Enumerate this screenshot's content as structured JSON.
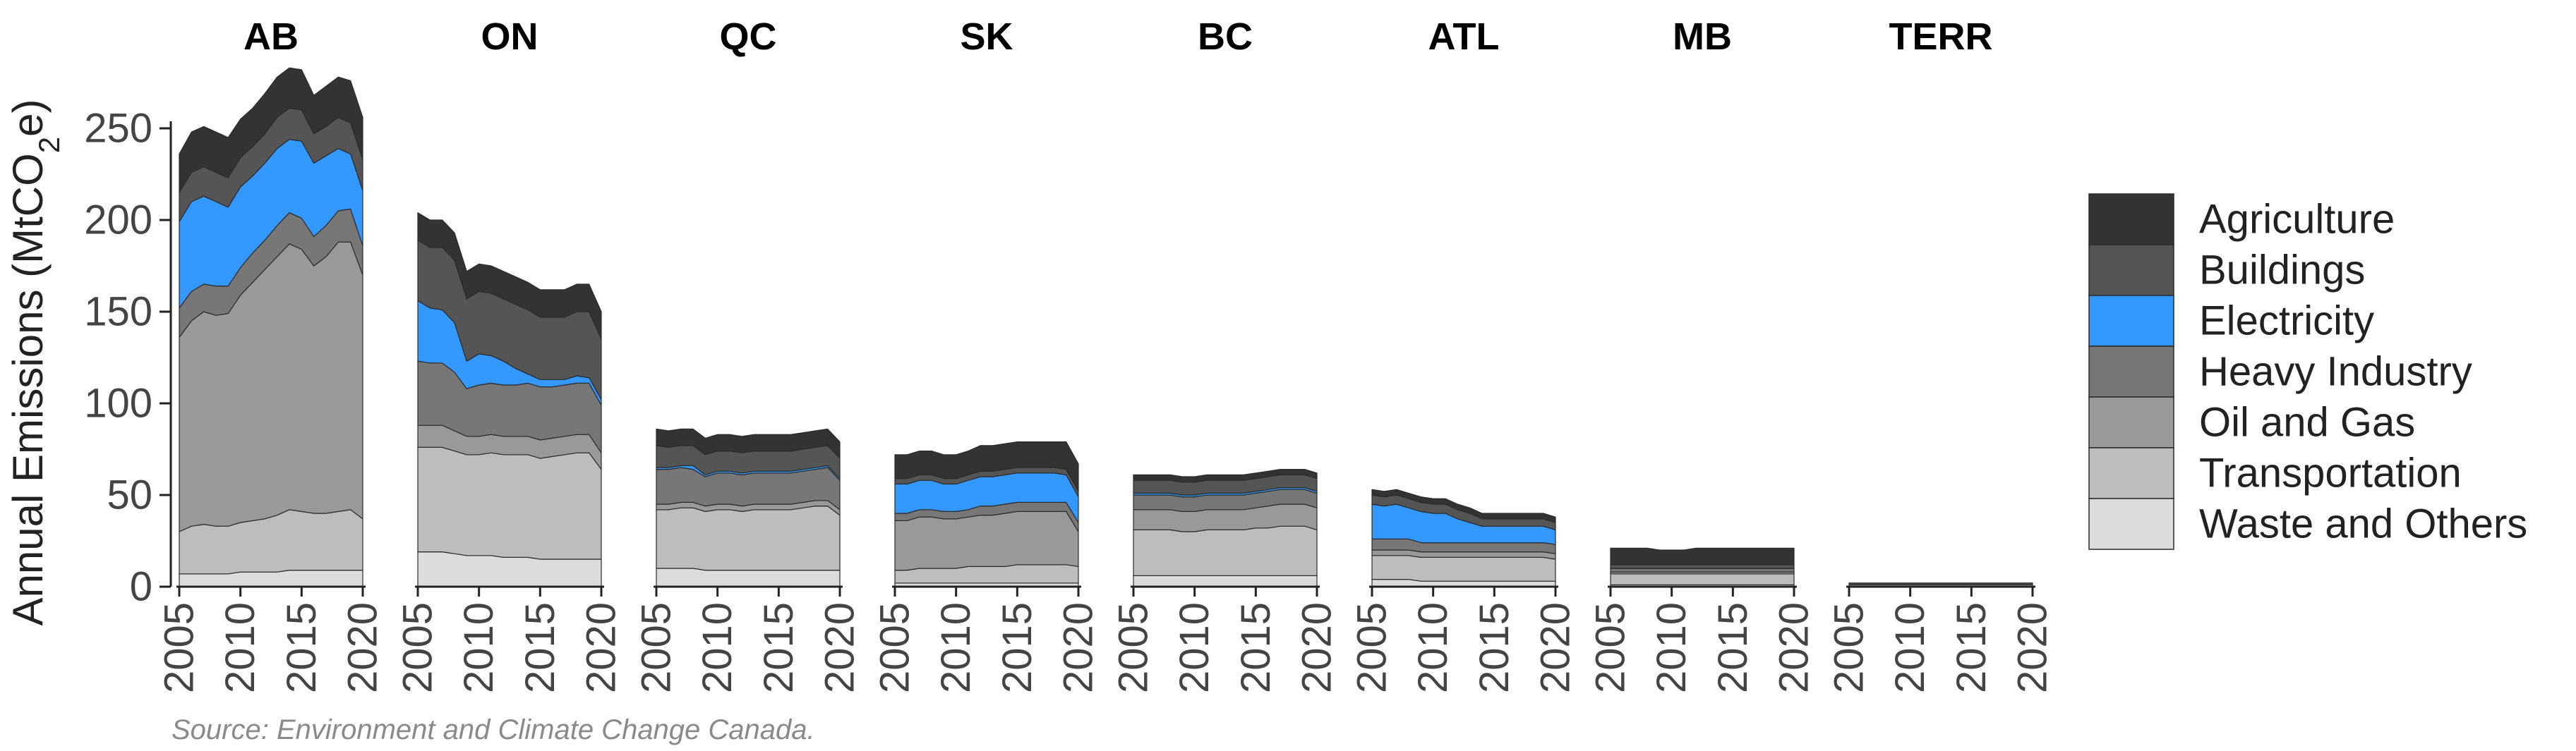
{
  "chart_data": {
    "type": "area",
    "stacked": true,
    "ylabel_main": "Annual Emissions  (MtCO",
    "ylabel_sub": "2",
    "ylabel_end": "e)",
    "ylim": [
      0,
      280
    ],
    "yticks": [
      0,
      50,
      100,
      150,
      200,
      250
    ],
    "xlim": [
      2005,
      2020
    ],
    "xticks": [
      2005,
      2010,
      2015,
      2020
    ],
    "years": [
      2005,
      2006,
      2007,
      2008,
      2009,
      2010,
      2011,
      2012,
      2013,
      2014,
      2015,
      2016,
      2017,
      2018,
      2019,
      2020
    ],
    "legend": {
      "placement": "right"
    },
    "series": [
      {
        "key": "waste",
        "name": "Waste and Others",
        "color": "#dcdcdc"
      },
      {
        "key": "transport",
        "name": "Transportation",
        "color": "#bdbdbd"
      },
      {
        "key": "oilgas",
        "name": "Oil and Gas",
        "color": "#999999"
      },
      {
        "key": "heavy",
        "name": "Heavy Industry",
        "color": "#777777"
      },
      {
        "key": "electricity",
        "name": "Electricity",
        "color": "#3399ff"
      },
      {
        "key": "buildings",
        "name": "Buildings",
        "color": "#555555"
      },
      {
        "key": "agriculture",
        "name": "Agriculture",
        "color": "#333333"
      }
    ],
    "panels": [
      {
        "name": "AB",
        "values": {
          "waste": [
            7,
            7,
            7,
            7,
            7,
            8,
            8,
            8,
            8,
            9,
            9,
            9,
            9,
            9,
            9,
            9
          ],
          "transport": [
            23,
            26,
            27,
            26,
            26,
            27,
            28,
            29,
            31,
            33,
            32,
            31,
            31,
            32,
            33,
            28
          ],
          "oilgas": [
            106,
            112,
            116,
            115,
            116,
            124,
            130,
            136,
            141,
            145,
            143,
            135,
            140,
            147,
            146,
            133
          ],
          "heavy": [
            16,
            16,
            15,
            16,
            15,
            15,
            16,
            16,
            17,
            17,
            17,
            16,
            17,
            17,
            18,
            16
          ],
          "electricity": [
            47,
            49,
            48,
            46,
            43,
            44,
            42,
            42,
            42,
            40,
            42,
            40,
            38,
            34,
            30,
            30
          ],
          "buildings": [
            16,
            16,
            16,
            16,
            16,
            16,
            16,
            16,
            17,
            17,
            17,
            16,
            16,
            17,
            17,
            17
          ],
          "agriculture": [
            21,
            22,
            22,
            22,
            22,
            21,
            21,
            22,
            22,
            22,
            22,
            21,
            22,
            22,
            23,
            23
          ]
        }
      },
      {
        "name": "ON",
        "values": {
          "waste": [
            19,
            19,
            19,
            18,
            17,
            17,
            17,
            16,
            16,
            16,
            15,
            15,
            15,
            15,
            15,
            15
          ],
          "transport": [
            57,
            57,
            57,
            56,
            55,
            55,
            56,
            56,
            56,
            56,
            55,
            56,
            57,
            58,
            58,
            49
          ],
          "oilgas": [
            12,
            12,
            12,
            11,
            10,
            10,
            10,
            10,
            10,
            10,
            10,
            10,
            10,
            10,
            10,
            9
          ],
          "heavy": [
            35,
            34,
            34,
            32,
            26,
            28,
            28,
            28,
            28,
            29,
            29,
            28,
            28,
            28,
            28,
            26
          ],
          "electricity": [
            33,
            30,
            29,
            27,
            15,
            17,
            15,
            13,
            9,
            5,
            4,
            4,
            3,
            4,
            3,
            3
          ],
          "buildings": [
            33,
            33,
            34,
            34,
            34,
            34,
            34,
            34,
            35,
            35,
            34,
            34,
            34,
            35,
            36,
            33
          ],
          "agriculture": [
            15,
            15,
            15,
            15,
            15,
            15,
            15,
            15,
            15,
            15,
            15,
            15,
            15,
            15,
            15,
            15
          ]
        }
      },
      {
        "name": "QC",
        "values": {
          "waste": [
            10,
            10,
            10,
            10,
            9,
            9,
            9,
            9,
            9,
            9,
            9,
            9,
            9,
            9,
            9,
            9
          ],
          "transport": [
            32,
            32,
            33,
            33,
            32,
            33,
            33,
            32,
            33,
            33,
            33,
            33,
            34,
            35,
            35,
            30
          ],
          "oilgas": [
            3,
            3,
            3,
            3,
            3,
            3,
            3,
            3,
            3,
            3,
            3,
            3,
            3,
            3,
            3,
            3
          ],
          "heavy": [
            19,
            19,
            19,
            18,
            16,
            17,
            17,
            17,
            17,
            17,
            17,
            17,
            17,
            17,
            18,
            16
          ],
          "electricity": [
            1,
            1,
            1,
            2,
            1,
            1,
            1,
            1,
            1,
            1,
            1,
            1,
            1,
            1,
            1,
            1
          ],
          "buildings": [
            12,
            11,
            11,
            11,
            11,
            11,
            11,
            11,
            11,
            11,
            11,
            11,
            11,
            11,
            11,
            11
          ],
          "agriculture": [
            9,
            9,
            9,
            9,
            9,
            9,
            9,
            9,
            9,
            9,
            9,
            9,
            9,
            9,
            9,
            9
          ]
        }
      },
      {
        "name": "SK",
        "values": {
          "waste": [
            2,
            2,
            2,
            2,
            2,
            2,
            2,
            2,
            2,
            2,
            2,
            2,
            2,
            2,
            2,
            2
          ],
          "transport": [
            7,
            7,
            8,
            8,
            8,
            8,
            9,
            9,
            9,
            9,
            10,
            10,
            10,
            10,
            10,
            9
          ],
          "oilgas": [
            27,
            27,
            28,
            28,
            27,
            27,
            27,
            28,
            28,
            29,
            29,
            29,
            29,
            29,
            29,
            19
          ],
          "heavy": [
            4,
            4,
            4,
            4,
            4,
            4,
            4,
            5,
            5,
            5,
            5,
            5,
            5,
            5,
            5,
            5
          ],
          "electricity": [
            16,
            16,
            16,
            16,
            15,
            15,
            16,
            16,
            16,
            16,
            16,
            16,
            16,
            16,
            15,
            14
          ],
          "buildings": [
            3,
            3,
            3,
            3,
            3,
            3,
            3,
            3,
            3,
            3,
            3,
            3,
            3,
            3,
            3,
            3
          ],
          "agriculture": [
            13,
            13,
            13,
            13,
            13,
            13,
            13,
            14,
            14,
            14,
            14,
            14,
            14,
            14,
            15,
            15
          ]
        }
      },
      {
        "name": "BC",
        "values": {
          "waste": [
            6,
            6,
            6,
            6,
            6,
            6,
            6,
            6,
            6,
            6,
            6,
            6,
            6,
            6,
            6,
            6
          ],
          "transport": [
            25,
            25,
            25,
            25,
            24,
            24,
            25,
            25,
            25,
            25,
            26,
            26,
            27,
            27,
            27,
            25
          ],
          "oilgas": [
            11,
            11,
            11,
            11,
            11,
            11,
            11,
            11,
            11,
            11,
            11,
            12,
            12,
            12,
            12,
            12
          ],
          "heavy": [
            8,
            8,
            8,
            8,
            8,
            8,
            8,
            8,
            8,
            8,
            8,
            8,
            8,
            8,
            8,
            8
          ],
          "electricity": [
            1,
            1,
            1,
            1,
            1,
            1,
            1,
            1,
            1,
            1,
            1,
            1,
            1,
            1,
            1,
            1
          ],
          "buildings": [
            7,
            7,
            7,
            7,
            7,
            7,
            7,
            7,
            7,
            7,
            7,
            7,
            7,
            7,
            7,
            7
          ],
          "agriculture": [
            3,
            3,
            3,
            3,
            3,
            3,
            3,
            3,
            3,
            3,
            3,
            3,
            3,
            3,
            3,
            3
          ]
        }
      },
      {
        "name": "ATL",
        "values": {
          "waste": [
            4,
            4,
            4,
            4,
            3,
            3,
            3,
            3,
            3,
            3,
            3,
            3,
            3,
            3,
            3,
            3
          ],
          "transport": [
            13,
            13,
            13,
            13,
            13,
            13,
            13,
            13,
            13,
            13,
            13,
            13,
            13,
            13,
            13,
            12
          ],
          "oilgas": [
            3,
            3,
            3,
            3,
            3,
            3,
            3,
            3,
            3,
            3,
            3,
            3,
            3,
            3,
            3,
            3
          ],
          "heavy": [
            6,
            6,
            6,
            6,
            5,
            5,
            5,
            5,
            5,
            5,
            5,
            5,
            5,
            5,
            5,
            5
          ],
          "electricity": [
            19,
            18,
            19,
            17,
            17,
            16,
            16,
            13,
            11,
            9,
            9,
            9,
            9,
            9,
            9,
            8
          ],
          "buildings": [
            5,
            5,
            5,
            5,
            5,
            5,
            5,
            5,
            5,
            4,
            4,
            4,
            4,
            4,
            4,
            4
          ],
          "agriculture": [
            3,
            3,
            3,
            3,
            3,
            3,
            3,
            3,
            3,
            3,
            3,
            3,
            3,
            3,
            3,
            3
          ]
        }
      },
      {
        "name": "MB",
        "values": {
          "waste": [
            1,
            1,
            1,
            1,
            1,
            1,
            1,
            1,
            1,
            1,
            1,
            1,
            1,
            1,
            1,
            1
          ],
          "transport": [
            6,
            6,
            6,
            6,
            6,
            6,
            6,
            6,
            6,
            6,
            6,
            6,
            6,
            6,
            6,
            6
          ],
          "oilgas": [
            1,
            1,
            1,
            1,
            1,
            1,
            1,
            1,
            1,
            1,
            1,
            1,
            1,
            1,
            1,
            1
          ],
          "heavy": [
            2,
            2,
            2,
            2,
            2,
            2,
            2,
            2,
            2,
            2,
            2,
            2,
            2,
            2,
            2,
            2
          ],
          "electricity": [
            0,
            0,
            0,
            0,
            0,
            0,
            0,
            0,
            0,
            0,
            0,
            0,
            0,
            0,
            0,
            0
          ],
          "buildings": [
            2,
            2,
            2,
            2,
            2,
            2,
            2,
            2,
            2,
            2,
            2,
            2,
            2,
            2,
            2,
            2
          ],
          "agriculture": [
            9,
            9,
            9,
            9,
            8,
            8,
            8,
            9,
            9,
            9,
            9,
            9,
            9,
            9,
            9,
            9
          ]
        }
      },
      {
        "name": "TERR",
        "values": {
          "waste": [
            0,
            0,
            0,
            0,
            0,
            0,
            0,
            0,
            0,
            0,
            0,
            0,
            0,
            0,
            0,
            0
          ],
          "transport": [
            1,
            1,
            1,
            1,
            1,
            1,
            1,
            1,
            1,
            1,
            1,
            1,
            1,
            1,
            1,
            1
          ],
          "oilgas": [
            0,
            0,
            0,
            0,
            0,
            0,
            0,
            0,
            0,
            0,
            0,
            0,
            0,
            0,
            0,
            0
          ],
          "heavy": [
            0,
            0,
            0,
            0,
            0,
            0,
            0,
            0,
            0,
            0,
            0,
            0,
            0,
            0,
            0,
            0
          ],
          "electricity": [
            0,
            0,
            0,
            0,
            0,
            0,
            0,
            0,
            0,
            0,
            0,
            0,
            0,
            0,
            0,
            0
          ],
          "buildings": [
            1,
            1,
            1,
            1,
            1,
            1,
            1,
            1,
            1,
            1,
            1,
            1,
            1,
            1,
            1,
            1
          ],
          "agriculture": [
            0,
            0,
            0,
            0,
            0,
            0,
            0,
            0,
            0,
            0,
            0,
            0,
            0,
            0,
            0,
            0
          ]
        }
      }
    ],
    "source": "Source: Environment and Climate Change Canada."
  }
}
